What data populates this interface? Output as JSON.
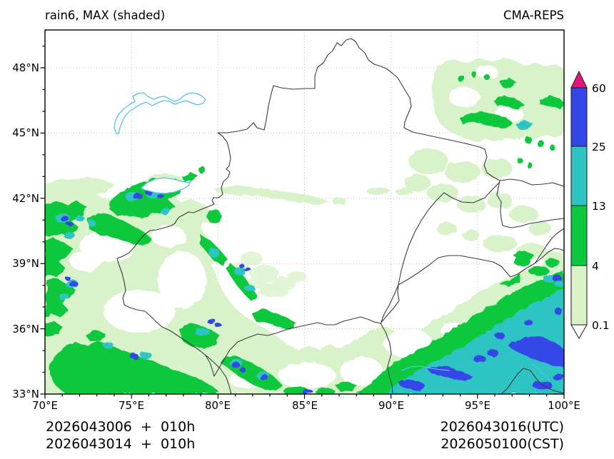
{
  "header": {
    "title": "rain6, MAX (shaded)",
    "model": "CMA-REPS"
  },
  "axes": {
    "x_tick_labels": [
      "70°E",
      "75°E",
      "80°E",
      "85°E",
      "90°E",
      "95°E",
      "100°E"
    ],
    "y_tick_labels": [
      "48°N",
      "45°N",
      "42°N",
      "39°N",
      "36°N",
      "33°N"
    ]
  },
  "colorbar": {
    "tick_labels": [
      "60",
      "25",
      "13",
      "4",
      "0.1"
    ],
    "colors": {
      "above_max": "#e8127c",
      "level4": "#3446e6",
      "level3": "#2ec4c4",
      "level2": "#0cc83c",
      "level1": "#d8f2ca",
      "below_min": "#ffffff"
    }
  },
  "footer": {
    "init_line_utc": "2026043006  +  010h",
    "init_line_cst": "2026043014  +  010h",
    "valid_time_utc": "2026043016(UTC)",
    "valid_time_cst": "2026050100(CST)"
  }
}
